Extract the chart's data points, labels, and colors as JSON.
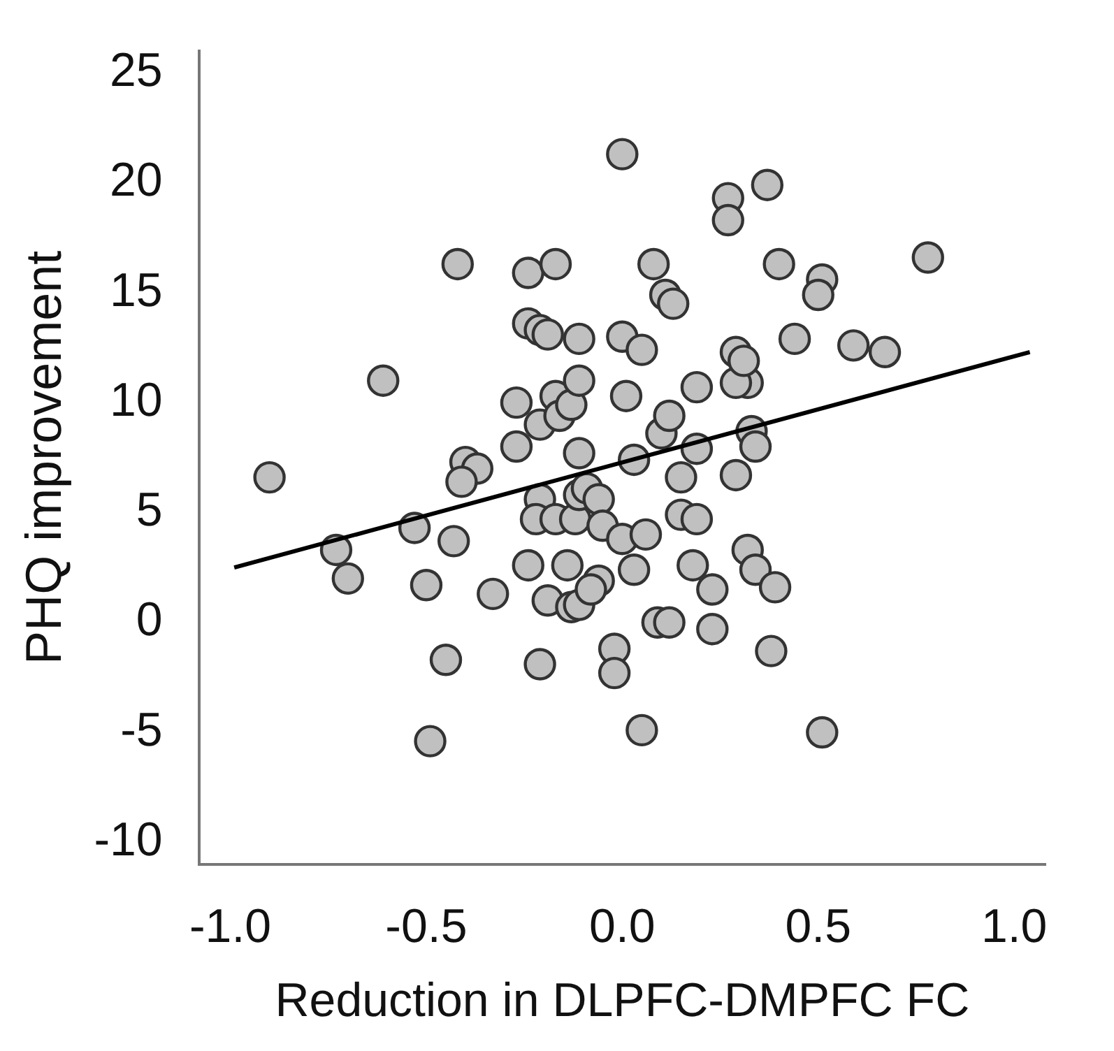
{
  "chart_data": {
    "type": "scatter",
    "xlabel": "Reduction in DLPFC-DMPFC FC",
    "ylabel": "PHQ improvement",
    "xlim": [
      -1.08,
      1.08
    ],
    "ylim": [
      -11,
      26
    ],
    "xticks": [
      {
        "value": -1,
        "label": "-1.0"
      },
      {
        "value": -0.5,
        "label": "-0.5"
      },
      {
        "value": 0,
        "label": "0.0"
      },
      {
        "value": 0.5,
        "label": "0.5"
      },
      {
        "value": 1,
        "label": "1.0"
      }
    ],
    "yticks": [
      -10,
      -5,
      0,
      5,
      10,
      15,
      20,
      25
    ],
    "grid": false,
    "legend": false,
    "marker": "circle",
    "series": [
      {
        "color": "#c0c0c0",
        "x": [
          -0.9,
          -0.73,
          -0.7,
          -0.61,
          -0.53,
          -0.5,
          -0.49,
          -0.43,
          -0.45,
          -0.42,
          -0.4,
          -0.37,
          -0.41,
          -0.33,
          -0.27,
          -0.27,
          -0.24,
          -0.24,
          -0.21,
          -0.21,
          -0.24,
          -0.21,
          -0.21,
          -0.22,
          -0.19,
          -0.17,
          -0.19,
          -0.17,
          -0.16,
          -0.13,
          -0.17,
          -0.12,
          -0.14,
          -0.13,
          -0.11,
          -0.11,
          -0.11,
          -0.11,
          -0.11,
          -0.09,
          -0.06,
          -0.06,
          -0.08,
          -0.05,
          -0.02,
          -0.02,
          0.0,
          0.0,
          0.01,
          0.0,
          0.03,
          0.03,
          0.05,
          0.06,
          0.05,
          0.08,
          0.1,
          0.11,
          0.13,
          0.12,
          0.09,
          0.12,
          0.15,
          0.15,
          0.19,
          0.19,
          0.19,
          0.18,
          0.23,
          0.23,
          0.27,
          0.27,
          0.37,
          0.4,
          0.51,
          0.5,
          0.78,
          0.44,
          0.59,
          0.67,
          0.29,
          0.32,
          0.29,
          0.31,
          0.33,
          0.34,
          0.29,
          0.32,
          0.34,
          0.39,
          0.38,
          0.51
        ],
        "values": [
          6.6,
          3.3,
          2.0,
          11.0,
          4.3,
          1.7,
          -5.4,
          3.7,
          -1.7,
          16.3,
          7.3,
          7.0,
          6.4,
          1.3,
          10.0,
          8.0,
          13.6,
          15.9,
          13.3,
          9.0,
          2.6,
          -1.9,
          5.6,
          4.7,
          1.0,
          16.3,
          13.1,
          10.3,
          9.4,
          9.9,
          4.7,
          4.7,
          2.6,
          0.7,
          0.8,
          12.9,
          11.0,
          7.7,
          5.8,
          6.1,
          5.6,
          1.9,
          1.5,
          4.4,
          -1.2,
          -2.3,
          21.3,
          13.0,
          10.3,
          3.8,
          7.4,
          2.4,
          12.4,
          4.0,
          -4.9,
          16.3,
          8.6,
          14.9,
          14.5,
          9.4,
          0.0,
          0.0,
          6.6,
          4.9,
          10.7,
          7.9,
          4.7,
          2.6,
          1.5,
          -0.3,
          19.3,
          18.3,
          19.9,
          16.3,
          15.6,
          14.9,
          16.6,
          12.9,
          12.6,
          12.3,
          12.3,
          10.9,
          10.9,
          11.9,
          8.7,
          8.0,
          6.7,
          3.3,
          2.4,
          1.6,
          -1.3,
          -5.0
        ]
      },
      {
        "type": "line",
        "color": "#000000",
        "marker": "none",
        "line_style": "solid",
        "x": [
          -0.99,
          1.04
        ],
        "values": [
          2.5,
          12.3
        ]
      }
    ]
  }
}
